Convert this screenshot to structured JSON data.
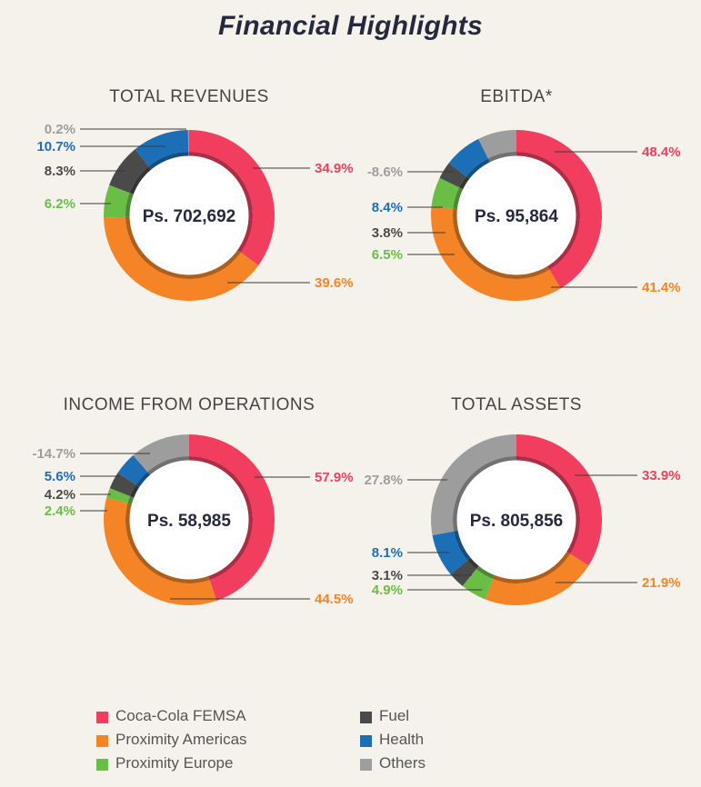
{
  "title": "Financial Highlights",
  "colors": {
    "Coca-Cola FEMSA": "#f13e5e",
    "Proximity Americas": "#f58426",
    "Proximity Europe": "#6abd45",
    "Fuel": "#4a4a4a",
    "Health": "#1c6eb6",
    "Others": "#9d9d9d"
  },
  "legend": [
    {
      "label": "Coca-Cola FEMSA",
      "color": "#f13e5e"
    },
    {
      "label": "Proximity Americas",
      "color": "#f58426"
    },
    {
      "label": "Proximity Europe",
      "color": "#6abd45"
    },
    {
      "label": "Fuel",
      "color": "#4a4a4a"
    },
    {
      "label": "Health",
      "color": "#1c6eb6"
    },
    {
      "label": "Others",
      "color": "#9d9d9d"
    }
  ],
  "chart_data": [
    {
      "type": "pie",
      "title": "TOTAL REVENUES",
      "center_label": "Ps. 702,692",
      "series": [
        {
          "name": "Coca-Cola FEMSA",
          "value": 34.9,
          "label": "34.9%"
        },
        {
          "name": "Proximity Americas",
          "value": 39.6,
          "label": "39.6%"
        },
        {
          "name": "Proximity Europe",
          "value": 6.2,
          "label": "6.2%"
        },
        {
          "name": "Fuel",
          "value": 8.3,
          "label": "8.3%"
        },
        {
          "name": "Health",
          "value": 10.7,
          "label": "10.7%"
        },
        {
          "name": "Others",
          "value": 0.2,
          "label": "0.2%"
        }
      ]
    },
    {
      "type": "pie",
      "title": "EBITDA*",
      "center_label": "Ps. 95,864",
      "series": [
        {
          "name": "Coca-Cola FEMSA",
          "value": 48.4,
          "label": "48.4%"
        },
        {
          "name": "Proximity Americas",
          "value": 41.4,
          "label": "41.4%"
        },
        {
          "name": "Proximity Europe",
          "value": 6.5,
          "label": "6.5%"
        },
        {
          "name": "Fuel",
          "value": 3.8,
          "label": "3.8%"
        },
        {
          "name": "Health",
          "value": 8.4,
          "label": "8.4%"
        },
        {
          "name": "Others",
          "value": -8.6,
          "label": "-8.6%"
        }
      ]
    },
    {
      "type": "pie",
      "title": "INCOME FROM OPERATIONS",
      "center_label": "Ps. 58,985",
      "series": [
        {
          "name": "Coca-Cola FEMSA",
          "value": 57.9,
          "label": "57.9%"
        },
        {
          "name": "Proximity Americas",
          "value": 44.5,
          "label": "44.5%"
        },
        {
          "name": "Proximity Europe",
          "value": 2.4,
          "label": "2.4%"
        },
        {
          "name": "Fuel",
          "value": 4.2,
          "label": "4.2%"
        },
        {
          "name": "Health",
          "value": 5.6,
          "label": "5.6%"
        },
        {
          "name": "Others",
          "value": -14.7,
          "label": "-14.7%"
        }
      ]
    },
    {
      "type": "pie",
      "title": "TOTAL ASSETS",
      "center_label": "Ps. 805,856",
      "series": [
        {
          "name": "Coca-Cola FEMSA",
          "value": 33.9,
          "label": "33.9%"
        },
        {
          "name": "Proximity Americas",
          "value": 21.9,
          "label": "21.9%"
        },
        {
          "name": "Proximity Europe",
          "value": 4.9,
          "label": "4.9%"
        },
        {
          "name": "Fuel",
          "value": 3.1,
          "label": "3.1%"
        },
        {
          "name": "Health",
          "value": 8.1,
          "label": "8.1%"
        },
        {
          "name": "Others",
          "value": 27.8,
          "label": "27.8%"
        }
      ]
    }
  ]
}
